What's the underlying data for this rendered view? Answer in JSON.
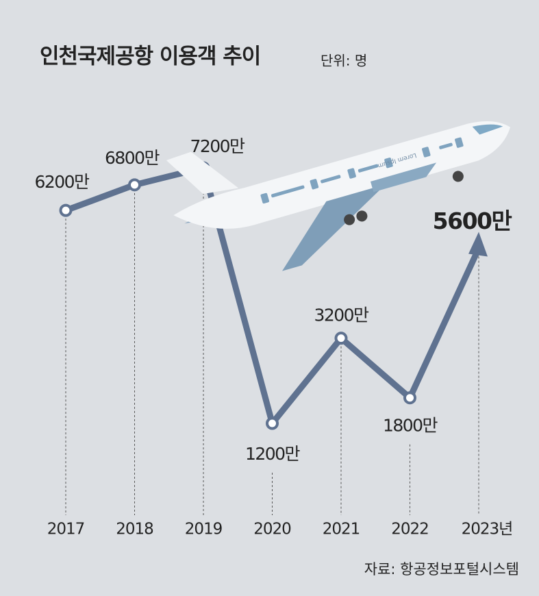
{
  "chart_data": {
    "type": "line",
    "title": "인천국제공항 이용객 추이",
    "unit": "단위: 명",
    "source": "자료: 항공정보포털시스템",
    "plane_text": "Lorem Ipsum",
    "categories": [
      "2017",
      "2018",
      "2019",
      "2020",
      "2021",
      "2022",
      "2023년"
    ],
    "values": [
      6200,
      6800,
      7200,
      1200,
      3200,
      1800,
      5600
    ],
    "value_labels": [
      "6200만",
      "6800만",
      "7200만",
      "1200만",
      "3200만",
      "1800만",
      "5600만"
    ],
    "color": "#5f7290"
  }
}
